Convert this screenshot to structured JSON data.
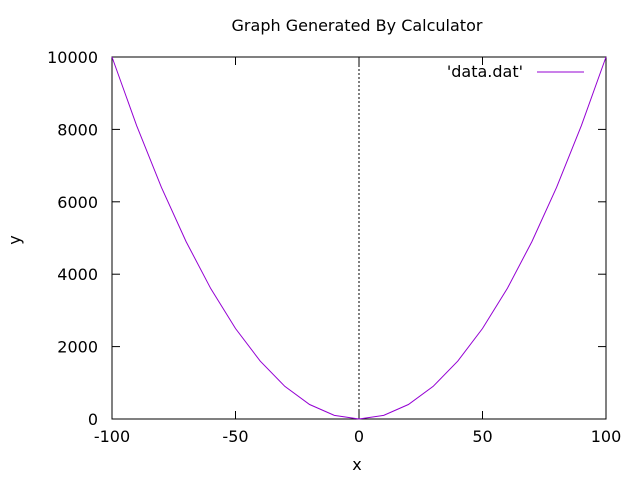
{
  "chart_data": {
    "type": "line",
    "title": "Graph Generated By Calculator",
    "xlabel": "x",
    "ylabel": "y",
    "xlim": [
      -100,
      100
    ],
    "ylim": [
      0,
      10000
    ],
    "xticks": [
      -100,
      -50,
      0,
      50,
      100
    ],
    "yticks": [
      0,
      2000,
      4000,
      6000,
      8000,
      10000
    ],
    "grid": false,
    "legend_position": "top-right",
    "zero_axis_line": "x = 0, dotted",
    "series": [
      {
        "name": "'data.dat'",
        "color": "#9400d3",
        "x": [
          -100,
          -90,
          -80,
          -70,
          -60,
          -50,
          -40,
          -30,
          -20,
          -10,
          0,
          10,
          20,
          30,
          40,
          50,
          60,
          70,
          80,
          90,
          100
        ],
        "y": [
          10000,
          8100,
          6400,
          4900,
          3600,
          2500,
          1600,
          900,
          400,
          100,
          0,
          100,
          400,
          900,
          1600,
          2500,
          3600,
          4900,
          6400,
          8100,
          10000
        ]
      }
    ]
  }
}
